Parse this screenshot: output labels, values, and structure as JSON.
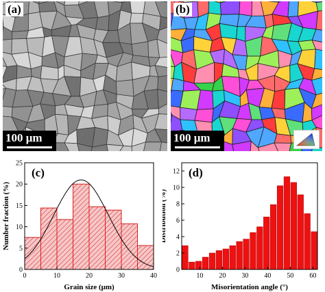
{
  "panels": {
    "a": {
      "label": "(a)",
      "scale_bar": "100 μm"
    },
    "b": {
      "label": "(b)",
      "scale_bar": "100 μm",
      "legend_icon": "ipf-color-triangle-icon"
    },
    "c": {
      "label": "(c)"
    },
    "d": {
      "label": "(d)"
    }
  },
  "colors": {
    "bar_fill_c": "#f6c8c8",
    "bar_edge_c": "#d62020",
    "hatch_c": "#e03a3a",
    "fit_curve": "#000000",
    "bar_fill_d": "#ee1111"
  },
  "chart_data": [
    {
      "type": "bar",
      "panel": "(c)",
      "xlabel": "Grain size (μm)",
      "ylabel": "Number fraction (%)",
      "xlim": [
        0,
        40
      ],
      "ylim": [
        0,
        25
      ],
      "xticks": [
        0,
        10,
        20,
        30,
        40
      ],
      "yticks": [
        0,
        5,
        10,
        15,
        20,
        25
      ],
      "bins": [
        [
          0,
          5
        ],
        [
          5,
          10
        ],
        [
          10,
          15
        ],
        [
          15,
          20
        ],
        [
          20,
          25
        ],
        [
          25,
          30
        ],
        [
          30,
          35
        ],
        [
          35,
          40
        ]
      ],
      "values": [
        7.5,
        14.4,
        11.7,
        20.0,
        14.7,
        13.9,
        10.7,
        5.6
      ],
      "hatched": true,
      "fit": {
        "type": "gaussian",
        "center": 17.5,
        "sigma": 8.5,
        "peak": 21.0
      }
    },
    {
      "type": "bar",
      "panel": "(d)",
      "xlabel": "Misorientation angle (°)",
      "ylabel": "Distribution (%)",
      "xlim": [
        2,
        62
      ],
      "ylim": [
        0,
        13
      ],
      "xticks": [
        10,
        20,
        30,
        40,
        50,
        60
      ],
      "yticks": [
        0,
        2,
        4,
        6,
        8,
        10,
        12
      ],
      "bin_width": 3,
      "centers": [
        3.5,
        6.5,
        9.5,
        12.5,
        15.5,
        18.5,
        21.5,
        24.5,
        27.5,
        30.5,
        33.5,
        36.5,
        39.5,
        42.5,
        45.5,
        48.5,
        51.5,
        54.5,
        57.5,
        60.5
      ],
      "values": [
        2.9,
        0.9,
        1.0,
        1.5,
        2.0,
        2.3,
        2.5,
        2.9,
        3.4,
        3.7,
        4.5,
        5.2,
        6.4,
        7.9,
        10.2,
        11.3,
        10.6,
        9.1,
        6.8,
        4.6
      ]
    }
  ]
}
